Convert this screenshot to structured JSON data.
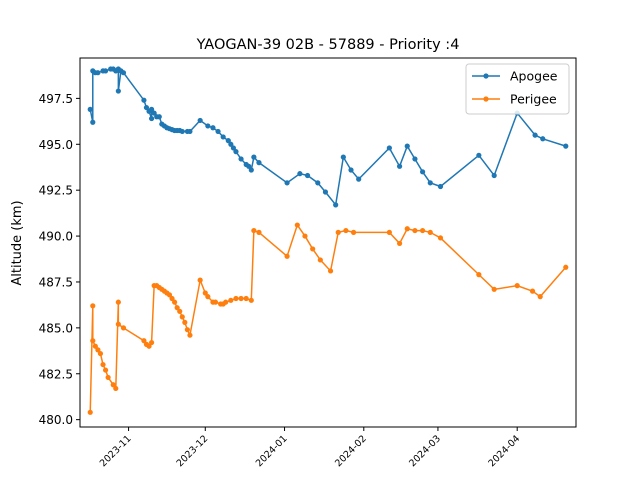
{
  "chart_data": {
    "type": "line",
    "title": "YAOGAN-39 02B - 57889 - Priority :4",
    "xlabel": "",
    "ylabel": "Altitude (km)",
    "xlim": [
      "2023-10-13",
      "2024-04-24"
    ],
    "ylim": [
      479.6,
      499.7
    ],
    "x_ticks": [
      {
        "date": "2023-11-01",
        "label": "2023-11"
      },
      {
        "date": "2023-12-01",
        "label": "2023-12"
      },
      {
        "date": "2024-01-01",
        "label": "2024-01"
      },
      {
        "date": "2024-02-01",
        "label": "2024-02"
      },
      {
        "date": "2024-03-01",
        "label": "2024-03"
      },
      {
        "date": "2024-04-01",
        "label": "2024-04"
      }
    ],
    "y_ticks": [
      {
        "value": 480.0,
        "label": "480.0"
      },
      {
        "value": 482.5,
        "label": "482.5"
      },
      {
        "value": 485.0,
        "label": "485.0"
      },
      {
        "value": 487.5,
        "label": "487.5"
      },
      {
        "value": 490.0,
        "label": "490.0"
      },
      {
        "value": 492.5,
        "label": "492.5"
      },
      {
        "value": 495.0,
        "label": "495.0"
      },
      {
        "value": 497.5,
        "label": "497.5"
      }
    ],
    "grid": false,
    "legend": "top-right",
    "series": [
      {
        "name": "Apogee",
        "color": "#1f77b4",
        "points": [
          [
            "2023-10-17",
            496.9
          ],
          [
            "2023-10-18",
            496.2
          ],
          [
            "2023-10-18",
            499.0
          ],
          [
            "2023-10-19",
            498.9
          ],
          [
            "2023-10-20",
            498.9
          ],
          [
            "2023-10-22",
            499.0
          ],
          [
            "2023-10-23",
            499.0
          ],
          [
            "2023-10-25",
            499.1
          ],
          [
            "2023-10-26",
            499.1
          ],
          [
            "2023-10-27",
            499.0
          ],
          [
            "2023-10-28",
            499.1
          ],
          [
            "2023-10-28",
            497.9
          ],
          [
            "2023-10-29",
            499.0
          ],
          [
            "2023-10-30",
            498.9
          ],
          [
            "2023-11-07",
            497.4
          ],
          [
            "2023-11-08",
            497.0
          ],
          [
            "2023-11-09",
            496.8
          ],
          [
            "2023-11-10",
            496.4
          ],
          [
            "2023-11-10",
            496.9
          ],
          [
            "2023-11-11",
            496.7
          ],
          [
            "2023-11-12",
            496.5
          ],
          [
            "2023-11-13",
            496.5
          ],
          [
            "2023-11-14",
            496.1
          ],
          [
            "2023-11-15",
            496.0
          ],
          [
            "2023-11-16",
            495.9
          ],
          [
            "2023-11-17",
            495.85
          ],
          [
            "2023-11-18",
            495.8
          ],
          [
            "2023-11-19",
            495.75
          ],
          [
            "2023-11-20",
            495.75
          ],
          [
            "2023-11-21",
            495.75
          ],
          [
            "2023-11-22",
            495.7
          ],
          [
            "2023-11-24",
            495.7
          ],
          [
            "2023-11-25",
            495.7
          ],
          [
            "2023-11-29",
            496.3
          ],
          [
            "2023-12-02",
            496.0
          ],
          [
            "2023-12-04",
            495.9
          ],
          [
            "2023-12-06",
            495.7
          ],
          [
            "2023-12-08",
            495.4
          ],
          [
            "2023-12-10",
            495.2
          ],
          [
            "2023-12-11",
            495.0
          ],
          [
            "2023-12-12",
            494.8
          ],
          [
            "2023-12-13",
            494.6
          ],
          [
            "2023-12-15",
            494.2
          ],
          [
            "2023-12-17",
            493.9
          ],
          [
            "2023-12-18",
            493.8
          ],
          [
            "2023-12-19",
            493.6
          ],
          [
            "2023-12-20",
            494.3
          ],
          [
            "2023-12-22",
            494.0
          ],
          [
            "2024-01-02",
            492.9
          ],
          [
            "2024-01-07",
            493.4
          ],
          [
            "2024-01-10",
            493.3
          ],
          [
            "2024-01-14",
            492.9
          ],
          [
            "2024-01-17",
            492.4
          ],
          [
            "2024-01-21",
            491.7
          ],
          [
            "2024-01-24",
            494.3
          ],
          [
            "2024-01-27",
            493.6
          ],
          [
            "2024-01-30",
            493.1
          ],
          [
            "2024-02-11",
            494.8
          ],
          [
            "2024-02-15",
            493.8
          ],
          [
            "2024-02-18",
            494.9
          ],
          [
            "2024-02-21",
            494.2
          ],
          [
            "2024-02-24",
            493.5
          ],
          [
            "2024-02-27",
            492.9
          ],
          [
            "2024-03-02",
            492.7
          ],
          [
            "2024-03-17",
            494.4
          ],
          [
            "2024-03-23",
            493.3
          ],
          [
            "2024-04-01",
            496.7
          ],
          [
            "2024-04-08",
            495.5
          ],
          [
            "2024-04-11",
            495.3
          ],
          [
            "2024-04-20",
            494.9
          ]
        ]
      },
      {
        "name": "Perigee",
        "color": "#ff7f0e",
        "points": [
          [
            "2023-10-17",
            480.4
          ],
          [
            "2023-10-18",
            486.2
          ],
          [
            "2023-10-18",
            484.3
          ],
          [
            "2023-10-19",
            484.0
          ],
          [
            "2023-10-20",
            483.8
          ],
          [
            "2023-10-21",
            483.6
          ],
          [
            "2023-10-22",
            483.0
          ],
          [
            "2023-10-23",
            482.7
          ],
          [
            "2023-10-24",
            482.3
          ],
          [
            "2023-10-26",
            481.9
          ],
          [
            "2023-10-27",
            481.7
          ],
          [
            "2023-10-28",
            486.4
          ],
          [
            "2023-10-28",
            485.2
          ],
          [
            "2023-10-30",
            485.0
          ],
          [
            "2023-11-07",
            484.3
          ],
          [
            "2023-11-08",
            484.1
          ],
          [
            "2023-11-09",
            484.0
          ],
          [
            "2023-11-10",
            484.2
          ],
          [
            "2023-11-11",
            487.3
          ],
          [
            "2023-11-12",
            487.3
          ],
          [
            "2023-11-13",
            487.2
          ],
          [
            "2023-11-14",
            487.1
          ],
          [
            "2023-11-15",
            487.0
          ],
          [
            "2023-11-16",
            486.9
          ],
          [
            "2023-11-17",
            486.8
          ],
          [
            "2023-11-18",
            486.6
          ],
          [
            "2023-11-19",
            486.4
          ],
          [
            "2023-11-20",
            486.1
          ],
          [
            "2023-11-21",
            485.9
          ],
          [
            "2023-11-22",
            485.6
          ],
          [
            "2023-11-23",
            485.3
          ],
          [
            "2023-11-24",
            484.9
          ],
          [
            "2023-11-25",
            484.6
          ],
          [
            "2023-11-29",
            487.6
          ],
          [
            "2023-12-01",
            486.9
          ],
          [
            "2023-12-02",
            486.7
          ],
          [
            "2023-12-04",
            486.4
          ],
          [
            "2023-12-05",
            486.4
          ],
          [
            "2023-12-07",
            486.3
          ],
          [
            "2023-12-08",
            486.3
          ],
          [
            "2023-12-09",
            486.4
          ],
          [
            "2023-12-11",
            486.5
          ],
          [
            "2023-12-13",
            486.6
          ],
          [
            "2023-12-15",
            486.6
          ],
          [
            "2023-12-17",
            486.6
          ],
          [
            "2023-12-19",
            486.5
          ],
          [
            "2023-12-20",
            490.3
          ],
          [
            "2023-12-22",
            490.2
          ],
          [
            "2024-01-02",
            488.9
          ],
          [
            "2024-01-06",
            490.6
          ],
          [
            "2024-01-09",
            490.0
          ],
          [
            "2024-01-12",
            489.3
          ],
          [
            "2024-01-15",
            488.7
          ],
          [
            "2024-01-19",
            488.1
          ],
          [
            "2024-01-22",
            490.2
          ],
          [
            "2024-01-25",
            490.3
          ],
          [
            "2024-01-28",
            490.2
          ],
          [
            "2024-02-11",
            490.2
          ],
          [
            "2024-02-15",
            489.6
          ],
          [
            "2024-02-18",
            490.4
          ],
          [
            "2024-02-21",
            490.3
          ],
          [
            "2024-02-24",
            490.3
          ],
          [
            "2024-02-27",
            490.2
          ],
          [
            "2024-03-02",
            489.9
          ],
          [
            "2024-03-17",
            487.9
          ],
          [
            "2024-03-23",
            487.1
          ],
          [
            "2024-04-01",
            487.3
          ],
          [
            "2024-04-07",
            487.0
          ],
          [
            "2024-04-10",
            486.7
          ],
          [
            "2024-04-20",
            488.3
          ]
        ]
      }
    ]
  }
}
